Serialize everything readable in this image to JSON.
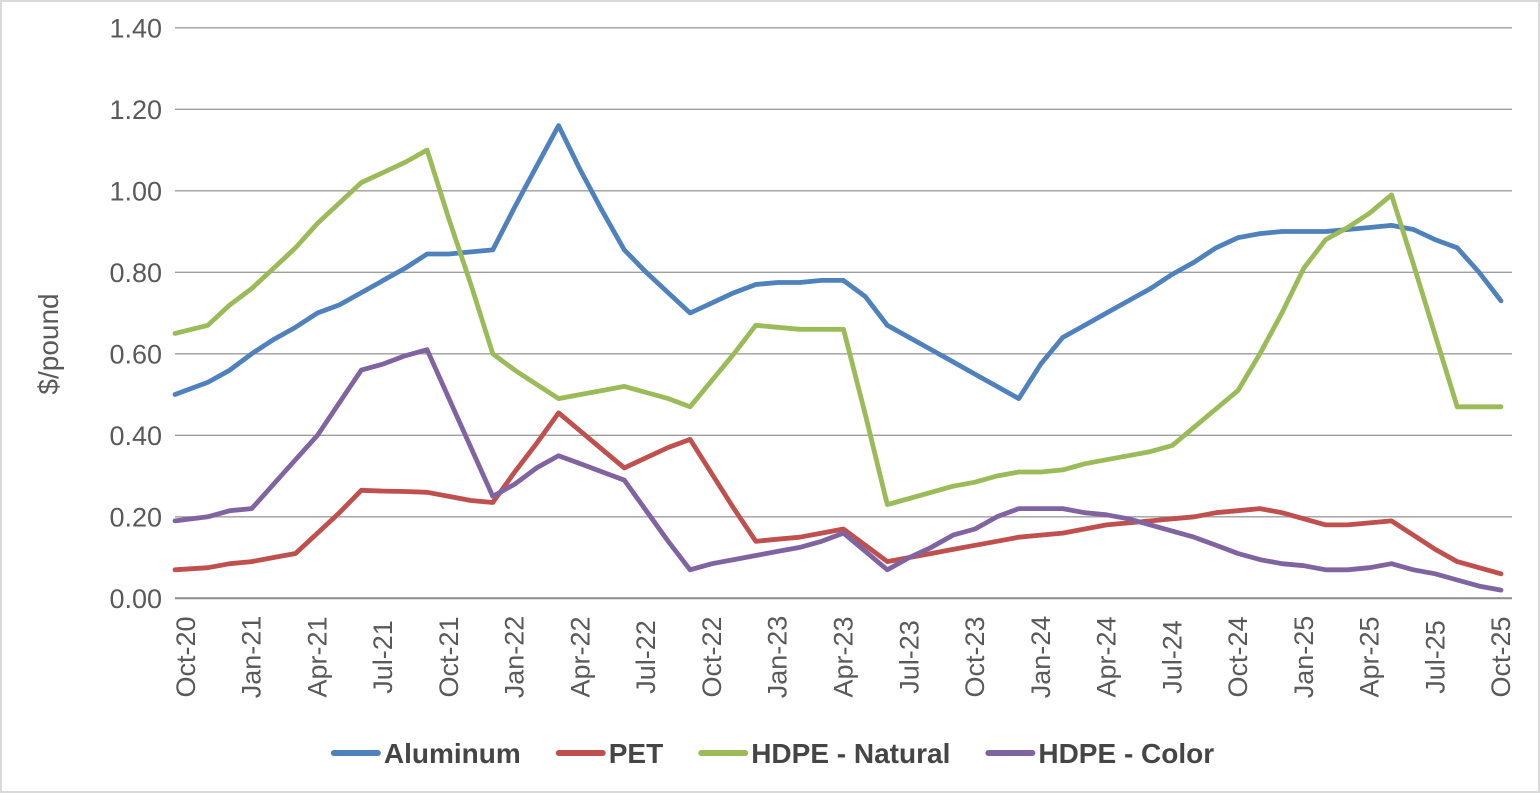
{
  "chart_data": {
    "type": "line",
    "title": "",
    "ylabel": "$/pound",
    "xlabel": "",
    "ylim": [
      0,
      1.4
    ],
    "ytick_step": 0.2,
    "y_tick_labels": [
      "0.00",
      "0.20",
      "0.40",
      "0.60",
      "0.80",
      "1.00",
      "1.20",
      "1.40"
    ],
    "grid": true,
    "legend_position": "bottom",
    "x_frequency": "monthly",
    "x_label_every": 3,
    "x_labels": [
      "Oct-20",
      "Jan-21",
      "Apr-21",
      "Jul-21",
      "Oct-21",
      "Jan-22",
      "Apr-22",
      "Jul-22",
      "Oct-22",
      "Jan-23",
      "Apr-23",
      "Jul-23",
      "Oct-23",
      "Jan-24",
      "Apr-24",
      "Jul-24",
      "Oct-24",
      "Jan-25",
      "Apr-25",
      "Jul-25",
      "Oct-25"
    ],
    "series": [
      {
        "name": "Aluminum",
        "color": "#4F81BD",
        "values": [
          0.5,
          0.53,
          0.56,
          0.6,
          0.635,
          0.665,
          0.7,
          0.72,
          0.75,
          0.78,
          0.81,
          0.845,
          0.845,
          0.85,
          0.855,
          0.96,
          1.06,
          1.16,
          1.05,
          0.95,
          0.855,
          0.8,
          0.75,
          0.7,
          0.725,
          0.75,
          0.77,
          0.775,
          0.775,
          0.78,
          0.78,
          0.74,
          0.67,
          0.64,
          0.61,
          0.58,
          0.55,
          0.52,
          0.49,
          0.575,
          0.64,
          0.67,
          0.7,
          0.73,
          0.76,
          0.795,
          0.825,
          0.86,
          0.885,
          0.895,
          0.9,
          0.9,
          0.9,
          0.905,
          0.91,
          0.915,
          0.905,
          0.88,
          0.86,
          0.8,
          0.73
        ]
      },
      {
        "name": "PET",
        "color": "#C0504D",
        "values": [
          0.07,
          0.075,
          0.085,
          0.09,
          0.1,
          0.11,
          0.16,
          0.21,
          0.265,
          0.263,
          0.262,
          0.26,
          0.25,
          0.24,
          0.235,
          0.31,
          0.38,
          0.455,
          0.41,
          0.365,
          0.32,
          0.345,
          0.37,
          0.39,
          0.305,
          0.22,
          0.14,
          0.145,
          0.15,
          0.16,
          0.17,
          0.13,
          0.09,
          0.1,
          0.11,
          0.12,
          0.13,
          0.14,
          0.15,
          0.155,
          0.16,
          0.17,
          0.18,
          0.185,
          0.19,
          0.195,
          0.2,
          0.21,
          0.215,
          0.22,
          0.21,
          0.195,
          0.18,
          0.18,
          0.185,
          0.19,
          0.155,
          0.12,
          0.09,
          0.075,
          0.06
        ]
      },
      {
        "name": "HDPE - Natural",
        "color": "#9BBB59",
        "values": [
          0.65,
          0.67,
          0.72,
          0.76,
          0.81,
          0.86,
          0.92,
          0.97,
          1.02,
          1.045,
          1.07,
          1.1,
          0.93,
          0.77,
          0.6,
          0.56,
          0.525,
          0.49,
          0.5,
          0.51,
          0.52,
          0.505,
          0.49,
          0.47,
          0.535,
          0.6,
          0.67,
          0.665,
          0.66,
          0.66,
          0.66,
          0.45,
          0.23,
          0.245,
          0.26,
          0.275,
          0.285,
          0.3,
          0.31,
          0.31,
          0.315,
          0.33,
          0.34,
          0.35,
          0.36,
          0.375,
          0.42,
          0.465,
          0.51,
          0.6,
          0.7,
          0.81,
          0.88,
          0.91,
          0.945,
          0.99,
          0.82,
          0.645,
          0.47,
          0.47,
          0.47
        ]
      },
      {
        "name": "HDPE - Color",
        "color": "#8064A2",
        "values": [
          0.19,
          0.2,
          0.215,
          0.22,
          0.28,
          0.34,
          0.4,
          0.48,
          0.56,
          0.575,
          0.595,
          0.61,
          0.49,
          0.37,
          0.25,
          0.28,
          0.32,
          0.35,
          0.33,
          0.31,
          0.29,
          0.215,
          0.14,
          0.07,
          0.085,
          0.095,
          0.105,
          0.115,
          0.125,
          0.14,
          0.16,
          0.115,
          0.07,
          0.1,
          0.125,
          0.155,
          0.17,
          0.2,
          0.22,
          0.22,
          0.22,
          0.21,
          0.205,
          0.195,
          0.18,
          0.165,
          0.15,
          0.13,
          0.11,
          0.095,
          0.085,
          0.08,
          0.07,
          0.07,
          0.075,
          0.085,
          0.07,
          0.06,
          0.045,
          0.03,
          0.02
        ]
      }
    ]
  }
}
